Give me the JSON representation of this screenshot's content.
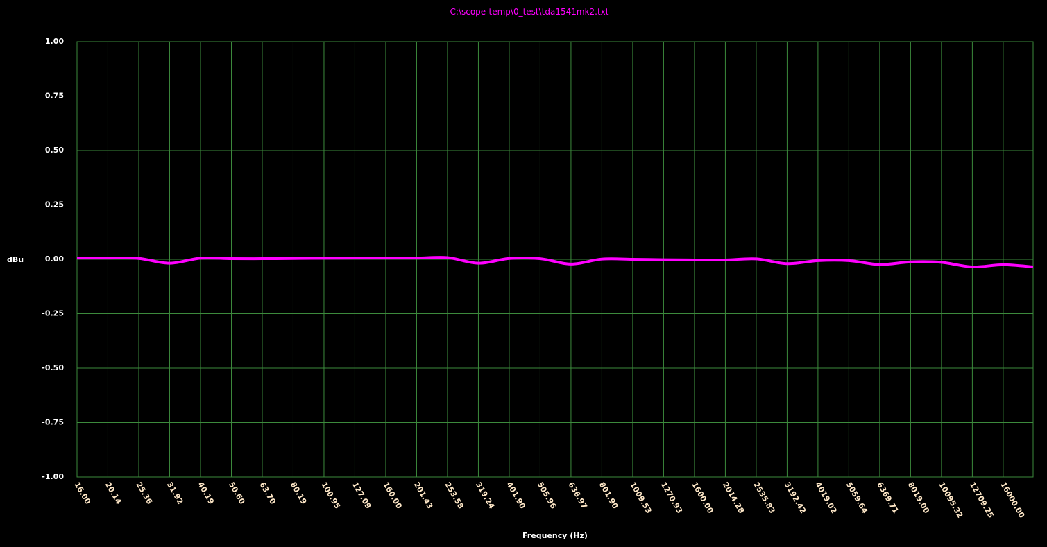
{
  "chart_data": {
    "type": "line",
    "title": "C:\\scope-temp\\0_test\\tda1541mk2.txt",
    "x_label": "Frequency (Hz)",
    "y_label": "dBu",
    "x_log": true,
    "grid": true,
    "xlim": [
      16,
      20000
    ],
    "ylim": [
      -1,
      1
    ],
    "xticks": [
      {
        "value": 16,
        "label": "16.00"
      },
      {
        "value": 20.14,
        "label": "20.14"
      },
      {
        "value": 25.36,
        "label": "25.36"
      },
      {
        "value": 31.92,
        "label": "31.92"
      },
      {
        "value": 40.19,
        "label": "40.19"
      },
      {
        "value": 50.6,
        "label": "50.60"
      },
      {
        "value": 63.7,
        "label": "63.70"
      },
      {
        "value": 80.19,
        "label": "80.19"
      },
      {
        "value": 100.95,
        "label": "100.95"
      },
      {
        "value": 127.09,
        "label": "127.09"
      },
      {
        "value": 160,
        "label": "160.00"
      },
      {
        "value": 201.43,
        "label": "201.43"
      },
      {
        "value": 253.58,
        "label": "253.58"
      },
      {
        "value": 319.24,
        "label": "319.24"
      },
      {
        "value": 401.9,
        "label": "401.90"
      },
      {
        "value": 505.96,
        "label": "505.96"
      },
      {
        "value": 636.97,
        "label": "636.97"
      },
      {
        "value": 801.9,
        "label": "801.90"
      },
      {
        "value": 1009.53,
        "label": "1009.53"
      },
      {
        "value": 1270.93,
        "label": "1270.93"
      },
      {
        "value": 1600,
        "label": "1600.00"
      },
      {
        "value": 2014.28,
        "label": "2014.28"
      },
      {
        "value": 2535.83,
        "label": "2535.83"
      },
      {
        "value": 3192.42,
        "label": "3192.42"
      },
      {
        "value": 4019.02,
        "label": "4019.02"
      },
      {
        "value": 5059.64,
        "label": "5059.64"
      },
      {
        "value": 6369.71,
        "label": "6369.71"
      },
      {
        "value": 8019,
        "label": "8019.00"
      },
      {
        "value": 10095.32,
        "label": "10095.32"
      },
      {
        "value": 12709.25,
        "label": "12709.25"
      },
      {
        "value": 16000,
        "label": "16000.00"
      }
    ],
    "yticks": [
      {
        "value": 1,
        "label": "1.00"
      },
      {
        "value": 0.75,
        "label": "0.75"
      },
      {
        "value": 0.5,
        "label": "0.50"
      },
      {
        "value": 0.25,
        "label": "0.25"
      },
      {
        "value": 0,
        "label": "0.00"
      },
      {
        "value": -0.25,
        "label": "-0.25"
      },
      {
        "value": -0.5,
        "label": "-0.50"
      },
      {
        "value": -0.75,
        "label": "-0.75"
      },
      {
        "value": -1,
        "label": "-1.00"
      }
    ],
    "grid_color": "#3c8a3c",
    "x": [
      16,
      20.14,
      25.36,
      31.92,
      40.19,
      50.6,
      63.7,
      80.19,
      100.95,
      127.09,
      160,
      201.43,
      253.58,
      319.24,
      401.9,
      505.96,
      636.97,
      801.9,
      1009.53,
      1270.93,
      1600,
      2014.28,
      2535.83,
      3192.42,
      4019.02,
      5059.64,
      6369.71,
      8019,
      10095.32,
      12709.25,
      16000,
      20000
    ],
    "series": [
      {
        "color": "#ff00ff",
        "values": [
          0.006,
          0.006,
          0.004,
          -0.018,
          0.005,
          0.003,
          0.003,
          0.004,
          0.005,
          0.006,
          0.006,
          0.006,
          0.008,
          -0.018,
          0.004,
          0.003,
          -0.022,
          0.001,
          0,
          -0.002,
          -0.003,
          -0.003,
          0.002,
          -0.02,
          -0.006,
          -0.006,
          -0.024,
          -0.012,
          -0.014,
          -0.035,
          -0.025,
          -0.035
        ]
      }
    ]
  }
}
